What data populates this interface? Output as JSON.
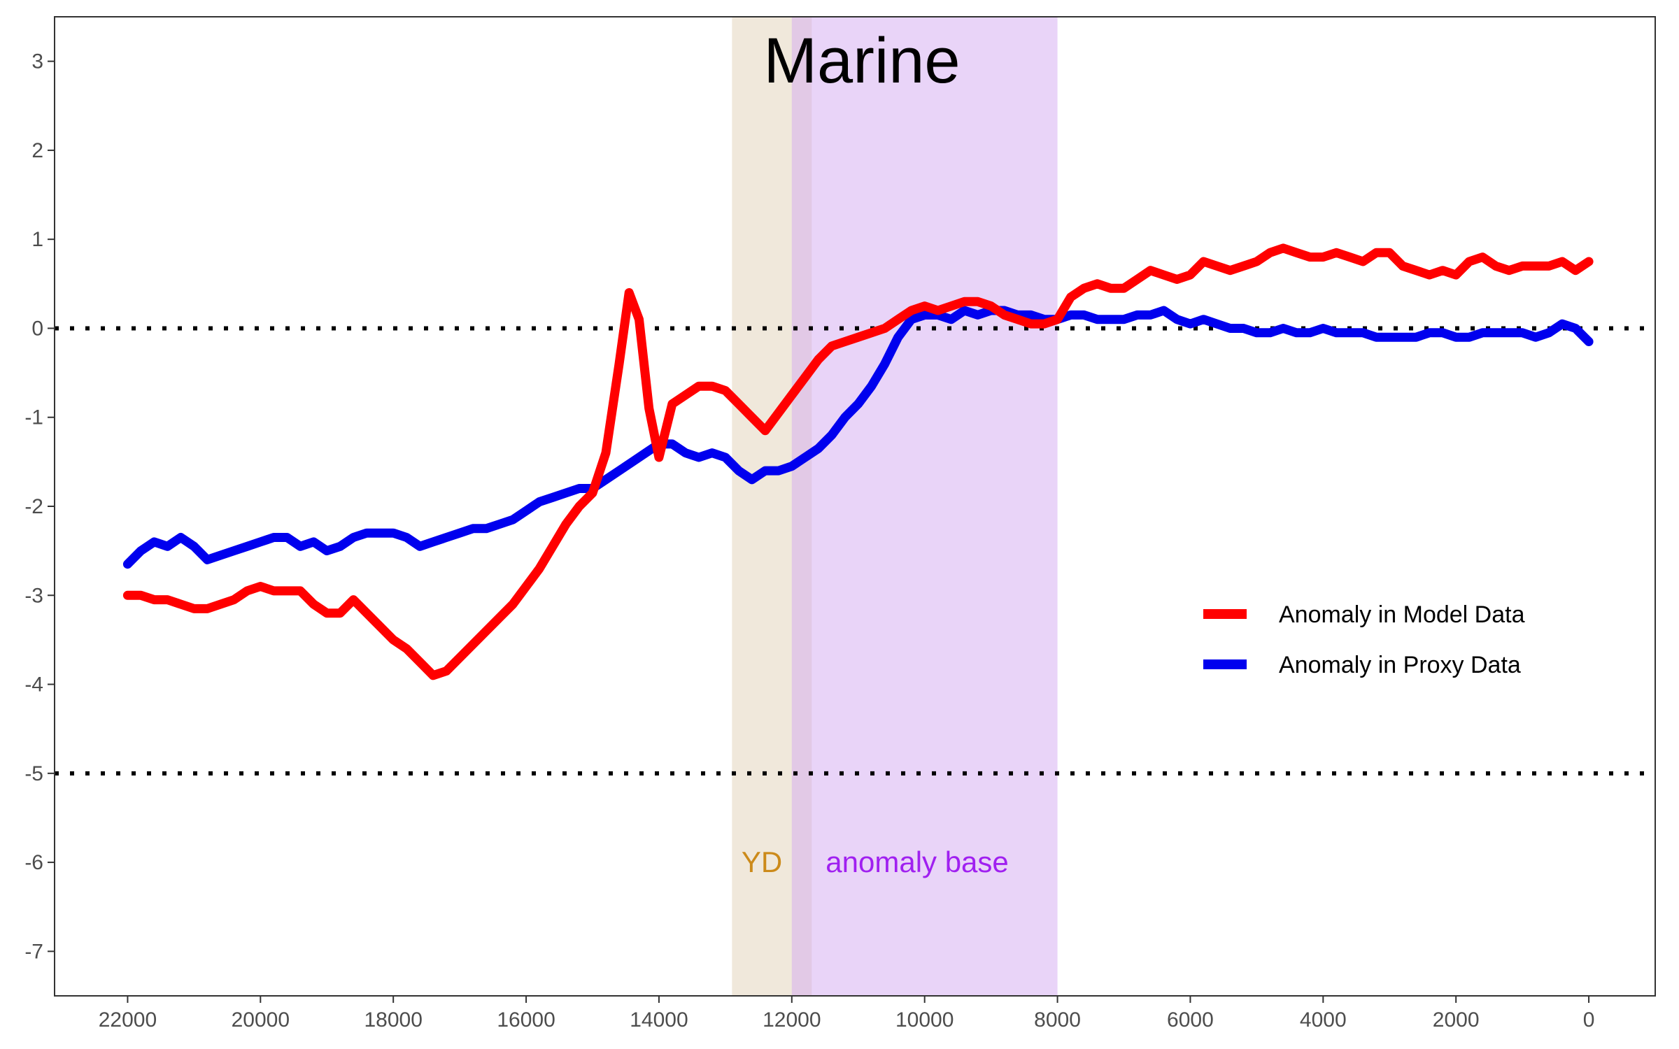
{
  "chart_data": {
    "type": "line",
    "title": "Marine",
    "xlabel": "",
    "ylabel": "",
    "xlim": [
      23100,
      -1000
    ],
    "ylim": [
      -7.5,
      3.5
    ],
    "x_reversed": true,
    "x_ticks": [
      22000,
      20000,
      18000,
      16000,
      14000,
      12000,
      10000,
      8000,
      6000,
      4000,
      2000,
      0
    ],
    "y_ticks": [
      3,
      2,
      1,
      0,
      -1,
      -2,
      -3,
      -4,
      -5,
      -6,
      -7
    ],
    "x_tick_labels": [
      "22000",
      "20000",
      "18000",
      "16000",
      "14000",
      "12000",
      "10000",
      "8000",
      "6000",
      "4000",
      "2000",
      "0"
    ],
    "y_tick_labels": [
      "3",
      "2",
      "1",
      "0",
      "-1",
      "-2",
      "-3",
      "-4",
      "-5",
      "-6",
      "-7"
    ],
    "grid": false,
    "legend_position": "right",
    "reference_lines": [
      {
        "y": 0,
        "style": "dotted",
        "color": "#000000"
      },
      {
        "y": -5,
        "style": "dotted",
        "color": "#000000"
      }
    ],
    "bands": [
      {
        "label": "YD",
        "x_start": 12900,
        "x_end": 11700,
        "color": "#ddcdb0",
        "opacity": 0.45,
        "label_color": "#cc8a1a",
        "label_y": -6.0
      },
      {
        "label": "anomaly base",
        "x_start": 12000,
        "x_end": 8000,
        "color": "#d4aaf2",
        "opacity": 0.5,
        "label_color": "#a020f0",
        "label_y": -6.0
      }
    ],
    "series": [
      {
        "name": "Anomaly in Model Data",
        "color": "#ff0000",
        "x": [
          22000,
          21800,
          21600,
          21400,
          21200,
          21000,
          20800,
          20600,
          20400,
          20200,
          20000,
          19800,
          19600,
          19400,
          19200,
          19000,
          18800,
          18600,
          18400,
          18200,
          18000,
          17800,
          17600,
          17400,
          17200,
          17000,
          16800,
          16600,
          16400,
          16200,
          16000,
          15800,
          15600,
          15400,
          15200,
          15000,
          14800,
          14600,
          14450,
          14300,
          14150,
          14000,
          13800,
          13600,
          13400,
          13200,
          13000,
          12800,
          12600,
          12400,
          12200,
          12000,
          11800,
          11600,
          11400,
          11200,
          11000,
          10800,
          10600,
          10400,
          10200,
          10000,
          9800,
          9600,
          9400,
          9200,
          9000,
          8800,
          8600,
          8400,
          8200,
          8000,
          7800,
          7600,
          7400,
          7200,
          7000,
          6800,
          6600,
          6400,
          6200,
          6000,
          5800,
          5600,
          5400,
          5200,
          5000,
          4800,
          4600,
          4400,
          4200,
          4000,
          3800,
          3600,
          3400,
          3200,
          3000,
          2800,
          2600,
          2400,
          2200,
          2000,
          1800,
          1600,
          1400,
          1200,
          1000,
          800,
          600,
          400,
          200,
          0
        ],
        "values": [
          -3.0,
          -3.0,
          -3.05,
          -3.05,
          -3.1,
          -3.15,
          -3.15,
          -3.1,
          -3.05,
          -2.95,
          -2.9,
          -2.95,
          -2.95,
          -2.95,
          -3.1,
          -3.2,
          -3.2,
          -3.05,
          -3.2,
          -3.35,
          -3.5,
          -3.6,
          -3.75,
          -3.9,
          -3.85,
          -3.7,
          -3.55,
          -3.4,
          -3.25,
          -3.1,
          -2.9,
          -2.7,
          -2.45,
          -2.2,
          -2.0,
          -1.85,
          -1.4,
          -0.4,
          0.4,
          0.1,
          -0.9,
          -1.45,
          -0.85,
          -0.75,
          -0.65,
          -0.65,
          -0.7,
          -0.85,
          -1.0,
          -1.15,
          -0.95,
          -0.75,
          -0.55,
          -0.35,
          -0.2,
          -0.15,
          -0.1,
          -0.05,
          0.0,
          0.1,
          0.2,
          0.25,
          0.2,
          0.25,
          0.3,
          0.3,
          0.25,
          0.15,
          0.1,
          0.05,
          0.05,
          0.1,
          0.35,
          0.45,
          0.5,
          0.45,
          0.45,
          0.55,
          0.65,
          0.6,
          0.55,
          0.6,
          0.75,
          0.7,
          0.65,
          0.7,
          0.75,
          0.85,
          0.9,
          0.85,
          0.8,
          0.8,
          0.85,
          0.8,
          0.75,
          0.85,
          0.85,
          0.7,
          0.65,
          0.6,
          0.65,
          0.6,
          0.75,
          0.8,
          0.7,
          0.65,
          0.7,
          0.7,
          0.7,
          0.75,
          0.65,
          0.75
        ]
      },
      {
        "name": "Anomaly in Proxy Data",
        "color": "#0000ee",
        "x": [
          22000,
          21800,
          21600,
          21400,
          21200,
          21000,
          20800,
          20600,
          20400,
          20200,
          20000,
          19800,
          19600,
          19400,
          19200,
          19000,
          18800,
          18600,
          18400,
          18200,
          18000,
          17800,
          17600,
          17400,
          17200,
          17000,
          16800,
          16600,
          16400,
          16200,
          16000,
          15800,
          15600,
          15400,
          15200,
          15000,
          14800,
          14600,
          14400,
          14200,
          14000,
          13800,
          13600,
          13400,
          13200,
          13000,
          12800,
          12600,
          12400,
          12200,
          12000,
          11800,
          11600,
          11400,
          11200,
          11000,
          10800,
          10600,
          10400,
          10200,
          10000,
          9800,
          9600,
          9400,
          9200,
          9000,
          8800,
          8600,
          8400,
          8200,
          8000,
          7800,
          7600,
          7400,
          7200,
          7000,
          6800,
          6600,
          6400,
          6200,
          6000,
          5800,
          5600,
          5400,
          5200,
          5000,
          4800,
          4600,
          4400,
          4200,
          4000,
          3800,
          3600,
          3400,
          3200,
          3000,
          2800,
          2600,
          2400,
          2200,
          2000,
          1800,
          1600,
          1400,
          1200,
          1000,
          800,
          600,
          400,
          200,
          0
        ],
        "values": [
          -2.65,
          -2.5,
          -2.4,
          -2.45,
          -2.35,
          -2.45,
          -2.6,
          -2.55,
          -2.5,
          -2.45,
          -2.4,
          -2.35,
          -2.35,
          -2.45,
          -2.4,
          -2.5,
          -2.45,
          -2.35,
          -2.3,
          -2.3,
          -2.3,
          -2.35,
          -2.45,
          -2.4,
          -2.35,
          -2.3,
          -2.25,
          -2.25,
          -2.2,
          -2.15,
          -2.05,
          -1.95,
          -1.9,
          -1.85,
          -1.8,
          -1.8,
          -1.7,
          -1.6,
          -1.5,
          -1.4,
          -1.3,
          -1.3,
          -1.4,
          -1.45,
          -1.4,
          -1.45,
          -1.6,
          -1.7,
          -1.6,
          -1.6,
          -1.55,
          -1.45,
          -1.35,
          -1.2,
          -1.0,
          -0.85,
          -0.65,
          -0.4,
          -0.1,
          0.1,
          0.15,
          0.15,
          0.1,
          0.2,
          0.15,
          0.2,
          0.2,
          0.15,
          0.15,
          0.1,
          0.1,
          0.15,
          0.15,
          0.1,
          0.1,
          0.1,
          0.15,
          0.15,
          0.2,
          0.1,
          0.05,
          0.1,
          0.05,
          0.0,
          0.0,
          -0.05,
          -0.05,
          0.0,
          -0.05,
          -0.05,
          0.0,
          -0.05,
          -0.05,
          -0.05,
          -0.1,
          -0.1,
          -0.1,
          -0.1,
          -0.05,
          -0.05,
          -0.1,
          -0.1,
          -0.05,
          -0.05,
          -0.05,
          -0.05,
          -0.1,
          -0.05,
          0.05,
          0.0,
          -0.15
        ]
      }
    ]
  }
}
